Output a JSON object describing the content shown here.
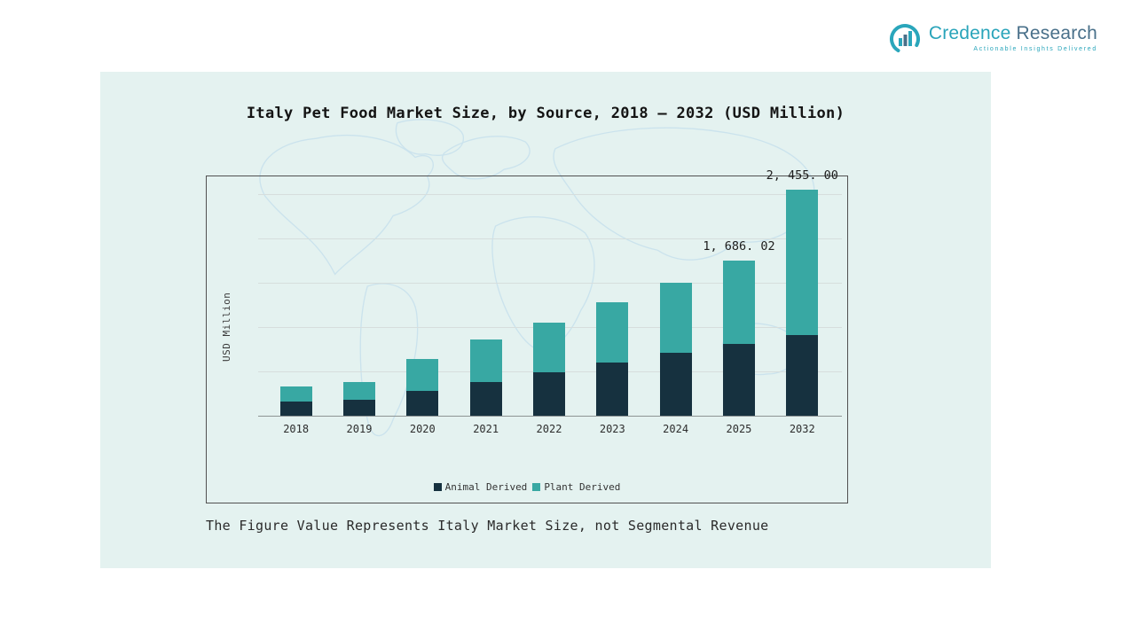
{
  "logo": {
    "brand_primary": "Credence",
    "brand_secondary": " Research",
    "tagline": "Actionable Insights Delivered",
    "accent_color": "#29a4ba",
    "secondary_color": "#49708a"
  },
  "slide": {
    "note": "The Figure Value Represents Italy Market Size, not Segmental Revenue"
  },
  "chart_data": {
    "type": "bar",
    "stacked": true,
    "title": "Italy Pet Food Market Size, by Source, 2018 – 2032 (USD Million)",
    "xlabel": "",
    "ylabel": "USD Million",
    "categories": [
      "2018",
      "2019",
      "2020",
      "2021",
      "2022",
      "2023",
      "2024",
      "2025",
      "2032"
    ],
    "series": [
      {
        "name": "Animal Derived",
        "color": "#16313f",
        "values": [
          155,
          175,
          270,
          365,
          470,
          580,
          685,
          780,
          880
        ]
      },
      {
        "name": "Plant Derived",
        "color": "#38a8a3",
        "values": [
          165,
          190,
          345,
          465,
          540,
          655,
          760,
          906.02,
          1575
        ]
      }
    ],
    "totals": [
      320,
      365,
      615,
      830,
      1010,
      1235,
      1445,
      1686.02,
      2455
    ],
    "data_labels": [
      {
        "category": "2025",
        "label": "1, 686. 02",
        "value": 1686.02
      },
      {
        "category": "2032",
        "label": "2, 455. 00",
        "value": 2455.0
      }
    ],
    "ylim": [
      0,
      2600
    ],
    "grid": true,
    "legend_position": "bottom",
    "panel_background": "#e4f2f0",
    "map_outline_color": "#cbe3ed"
  }
}
